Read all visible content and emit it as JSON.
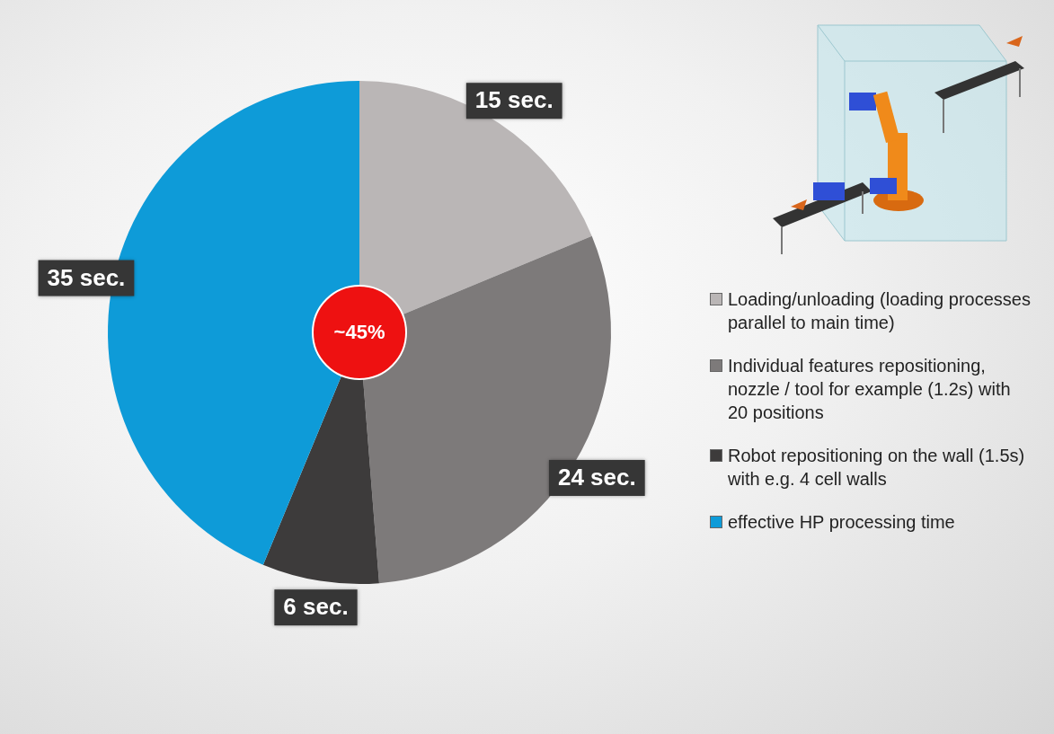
{
  "chart_data": {
    "type": "pie",
    "categories": [
      "Loading/unloading (loading processes parallel to main time)",
      "Individual features repositioning, nozzle / tool for example (1.2s) with 20 positions",
      "Robot repositioning on the wall (1.5s) with e.g. 4 cell walls",
      "effective HP processing time"
    ],
    "values": [
      15,
      24,
      6,
      35
    ],
    "value_labels": [
      "15 sec.",
      "24 sec.",
      "6 sec.",
      "35 sec."
    ],
    "colors": [
      "#bab6b6",
      "#7d7a7a",
      "#3d3b3b",
      "#0e9bd8"
    ],
    "data_labels": true,
    "legend": "right",
    "annotation": "~45%"
  }
}
